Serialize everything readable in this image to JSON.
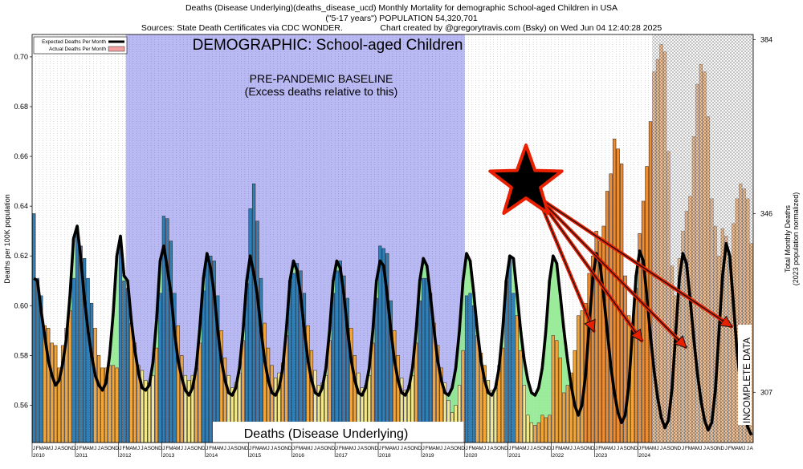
{
  "header": {
    "line1": "Deaths (Disease Underlying)(deaths_disease_ucd) Monthly Mortality for demographic School-aged Children in USA",
    "line2": "(\"5-17 years\") POPULATION 54,320,701",
    "line3": "Sources: State Death Certificates via CDC WONDER.                Chart created by @gregorytravis.com (Bsky) on Wed Jun 04 12:40:28 2025"
  },
  "annotations": {
    "demographic": "DEMOGRAPHIC: School-aged Children",
    "baseline_1": "PRE-PANDEMIC BASELINE",
    "baseline_2": "(Excess deaths relative to this)",
    "bottom_label": "Deaths (Disease Underlying)",
    "incomplete": "INCOMPLETE DATA"
  },
  "colors": {
    "baseline_shade": "#b9b9f4",
    "expected_line": "#000000",
    "excess_fill": "#f0a0a0",
    "deficit_fill": "#8fea8f",
    "bar_low": "#f3e98a",
    "bar_mid": "#f2a63a",
    "bar_high": "#2f7fb8",
    "arrow": "#e82000"
  },
  "chart_data": {
    "type": "bar",
    "title": "Deaths (Disease Underlying)(deaths_disease_ucd) Monthly Mortality for demographic School-aged Children in USA",
    "ylabel": "Deaths per 100K population",
    "y2label_1": "Total Monthly Deaths",
    "y2label_2": "(2023 population normalized)",
    "ylim": [
      0.545,
      0.709
    ],
    "yticks": [
      "0.56",
      "0.58",
      "0.60",
      "0.62",
      "0.64",
      "0.66",
      "0.68",
      "0.70"
    ],
    "y2ticks": [
      {
        "value": 0.5652,
        "label": "307"
      },
      {
        "value": 0.637,
        "label": "346"
      },
      {
        "value": 0.7069,
        "label": "384"
      }
    ],
    "start_year": 2010,
    "month_letters": [
      "J",
      "F",
      "M",
      "A",
      "M",
      "J",
      "J",
      "A",
      "S",
      "O",
      "N",
      "D"
    ],
    "years": [
      "2010",
      "2011",
      "2012",
      "2013",
      "2014",
      "2015",
      "2016",
      "2017",
      "2018",
      "2019",
      "2020",
      "2021",
      "2022",
      "2023",
      "2024"
    ],
    "legend": {
      "position": "top-left",
      "entries": [
        "Expected Deaths Per Month",
        "Actual Deaths Per Month"
      ]
    },
    "baseline_period": [
      "2012-03",
      "2020-01"
    ],
    "incomplete_period": [
      "2024-05",
      "2024-12"
    ],
    "series": [
      {
        "name": "Actual Deaths Per Month",
        "values": [
          0.637,
          0.611,
          0.604,
          0.592,
          0.591,
          0.585,
          0.584,
          0.575,
          0.584,
          0.591,
          0.598,
          0.611,
          0.631,
          0.624,
          0.619,
          0.611,
          0.601,
          0.591,
          0.58,
          0.575,
          0.575,
          0.576,
          0.576,
          0.575,
          0.625,
          0.61,
          0.607,
          0.593,
          0.585,
          0.576,
          0.574,
          0.57,
          0.569,
          0.572,
          0.583,
          0.605,
          0.636,
          0.635,
          0.626,
          0.605,
          0.592,
          0.58,
          0.572,
          0.57,
          0.572,
          0.575,
          0.585,
          0.606,
          0.62,
          0.62,
          0.618,
          0.604,
          0.59,
          0.579,
          0.572,
          0.567,
          0.569,
          0.573,
          0.586,
          0.609,
          0.639,
          0.649,
          0.634,
          0.611,
          0.593,
          0.583,
          0.576,
          0.571,
          0.573,
          0.577,
          0.588,
          0.61,
          0.613,
          0.617,
          0.614,
          0.605,
          0.592,
          0.582,
          0.574,
          0.568,
          0.569,
          0.572,
          0.586,
          0.605,
          0.614,
          0.618,
          0.612,
          0.603,
          0.591,
          0.58,
          0.573,
          0.567,
          0.568,
          0.572,
          0.585,
          0.603,
          0.624,
          0.623,
          0.621,
          0.602,
          0.59,
          0.58,
          0.571,
          0.566,
          0.568,
          0.572,
          0.585,
          0.602,
          0.611,
          0.611,
          0.605,
          0.593,
          0.584,
          0.575,
          0.569,
          0.562,
          0.557,
          0.56,
          0.568,
          0.582,
          0.604,
          0.605,
          0.6,
          0.588,
          0.581,
          0.576,
          0.57,
          0.566,
          0.567,
          0.576,
          0.583,
          0.61,
          0.62,
          0.605,
          0.596,
          0.582,
          0.568,
          0.556,
          0.553,
          0.552,
          0.553,
          0.556,
          0.555,
          0.556,
          0.588,
          0.586,
          0.579,
          0.565,
          0.568,
          0.573,
          0.582,
          0.596,
          0.598,
          0.601,
          0.613,
          0.62,
          0.63,
          0.626,
          0.632,
          0.646,
          0.653,
          0.667,
          0.663,
          0.657,
          0.612,
          0.596,
          0.59,
          0.607,
          0.629,
          0.642,
          0.656,
          0.674,
          0.694,
          0.699,
          0.705,
          0.702,
          0.662,
          0.616,
          0.604,
          0.619,
          0.63,
          0.638,
          0.644,
          0.668,
          0.689,
          0.697,
          0.694,
          0.676,
          0.643,
          0.632,
          0.62,
          0.631,
          0.628,
          0.618,
          0.633,
          0.643,
          0.649,
          0.647,
          0.643,
          0.625
        ]
      },
      {
        "name": "Expected Deaths Per Month",
        "values": [
          0.611,
          0.61,
          0.598,
          0.588,
          0.578,
          0.572,
          0.568,
          0.57,
          0.577,
          0.587,
          0.604,
          0.627,
          0.632,
          0.619,
          0.603,
          0.59,
          0.58,
          0.572,
          0.568,
          0.566,
          0.569,
          0.58,
          0.597,
          0.62,
          0.628,
          0.612,
          0.61,
          0.594,
          0.582,
          0.573,
          0.567,
          0.566,
          0.568,
          0.577,
          0.594,
          0.618,
          0.624,
          0.615,
          0.605,
          0.589,
          0.578,
          0.571,
          0.566,
          0.564,
          0.567,
          0.575,
          0.591,
          0.611,
          0.621,
          0.615,
          0.605,
          0.59,
          0.578,
          0.57,
          0.565,
          0.564,
          0.567,
          0.575,
          0.59,
          0.61,
          0.62,
          0.613,
          0.604,
          0.59,
          0.578,
          0.57,
          0.565,
          0.564,
          0.567,
          0.575,
          0.59,
          0.61,
          0.618,
          0.614,
          0.604,
          0.59,
          0.578,
          0.57,
          0.565,
          0.564,
          0.567,
          0.575,
          0.59,
          0.61,
          0.618,
          0.615,
          0.604,
          0.59,
          0.578,
          0.57,
          0.565,
          0.564,
          0.567,
          0.575,
          0.59,
          0.61,
          0.618,
          0.616,
          0.604,
          0.59,
          0.578,
          0.57,
          0.565,
          0.564,
          0.567,
          0.575,
          0.59,
          0.61,
          0.619,
          0.616,
          0.604,
          0.59,
          0.578,
          0.57,
          0.565,
          0.564,
          0.567,
          0.575,
          0.59,
          0.61,
          0.621,
          0.618,
          0.605,
          0.59,
          0.578,
          0.57,
          0.565,
          0.564,
          0.567,
          0.575,
          0.59,
          0.61,
          0.62,
          0.619,
          0.605,
          0.59,
          0.578,
          0.57,
          0.565,
          0.564,
          0.567,
          0.575,
          0.59,
          0.61,
          0.62,
          0.617,
          0.604,
          0.59,
          0.578,
          0.568,
          0.56,
          0.556,
          0.56,
          0.572,
          0.592,
          0.611,
          0.621,
          0.617,
          0.604,
          0.59,
          0.576,
          0.565,
          0.557,
          0.553,
          0.556,
          0.568,
          0.59,
          0.612,
          0.622,
          0.618,
          0.604,
          0.588,
          0.574,
          0.563,
          0.555,
          0.551,
          0.554,
          0.567,
          0.589,
          0.611,
          0.621,
          0.617,
          0.603,
          0.587,
          0.573,
          0.562,
          0.554,
          0.55,
          0.553,
          0.566,
          0.589,
          0.612,
          0.625,
          0.62,
          0.601,
          0.582,
          0.568,
          0.558,
          0.551,
          0.548,
          0.551,
          0.562,
          0.572,
          0.576
        ]
      }
    ]
  }
}
